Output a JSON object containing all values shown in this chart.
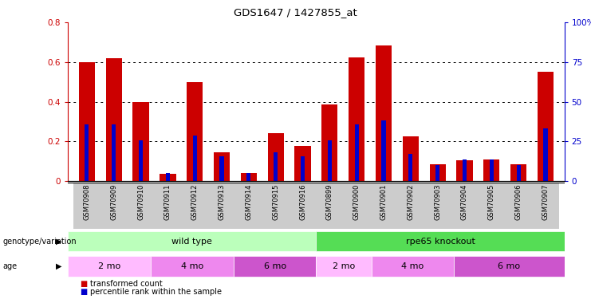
{
  "title": "GDS1647 / 1427855_at",
  "samples": [
    "GSM70908",
    "GSM70909",
    "GSM70910",
    "GSM70911",
    "GSM70912",
    "GSM70913",
    "GSM70914",
    "GSM70915",
    "GSM70916",
    "GSM70899",
    "GSM70900",
    "GSM70901",
    "GSM70902",
    "GSM70903",
    "GSM70904",
    "GSM70905",
    "GSM70906",
    "GSM70907"
  ],
  "transformed_count": [
    0.6,
    0.62,
    0.4,
    0.035,
    0.5,
    0.145,
    0.038,
    0.242,
    0.175,
    0.385,
    0.625,
    0.685,
    0.225,
    0.085,
    0.105,
    0.108,
    0.085,
    0.55
  ],
  "percentile_rank": [
    0.285,
    0.285,
    0.205,
    0.038,
    0.228,
    0.125,
    0.038,
    0.145,
    0.125,
    0.205,
    0.285,
    0.305,
    0.135,
    0.078,
    0.108,
    0.11,
    0.082,
    0.265
  ],
  "red_color": "#cc0000",
  "blue_color": "#0000cc",
  "ylim_left": [
    0.0,
    0.8
  ],
  "ylim_right": [
    0,
    100
  ],
  "yticks_left": [
    0,
    0.2,
    0.4,
    0.6,
    0.8
  ],
  "yticks_right": [
    0,
    25,
    50,
    75,
    100
  ],
  "genotype_groups": [
    {
      "label": "wild type",
      "start": 0,
      "end": 9,
      "color": "#bbffbb"
    },
    {
      "label": "rpe65 knockout",
      "start": 9,
      "end": 18,
      "color": "#55dd55"
    }
  ],
  "age_groups": [
    {
      "label": "2 mo",
      "start": 0,
      "end": 3,
      "color": "#ffbbff"
    },
    {
      "label": "4 mo",
      "start": 3,
      "end": 6,
      "color": "#ee88ee"
    },
    {
      "label": "6 mo",
      "start": 6,
      "end": 9,
      "color": "#cc55cc"
    },
    {
      "label": "2 mo",
      "start": 9,
      "end": 11,
      "color": "#ffbbff"
    },
    {
      "label": "4 mo",
      "start": 11,
      "end": 14,
      "color": "#ee88ee"
    },
    {
      "label": "6 mo",
      "start": 14,
      "end": 18,
      "color": "#cc55cc"
    }
  ],
  "legend": [
    {
      "label": "transformed count",
      "color": "#cc0000"
    },
    {
      "label": "percentile rank within the sample",
      "color": "#0000cc"
    }
  ]
}
